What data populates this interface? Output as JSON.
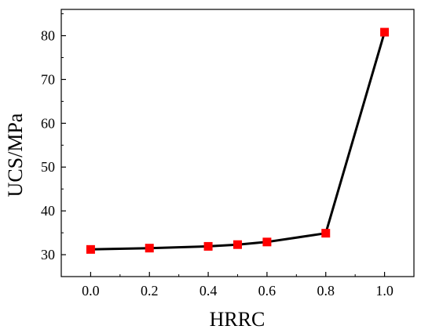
{
  "chart_data": {
    "type": "line",
    "xlabel": "HRRC",
    "ylabel": "UCS/MPa",
    "xlim": [
      -0.1,
      1.1
    ],
    "ylim": [
      25,
      86
    ],
    "x_ticks": [
      0.0,
      0.2,
      0.4,
      0.6,
      0.8,
      1.0
    ],
    "x_tick_labels": [
      "0.0",
      "0.2",
      "0.4",
      "0.6",
      "0.8",
      "1.0"
    ],
    "y_ticks": [
      30,
      40,
      50,
      60,
      70,
      80
    ],
    "y_tick_labels": [
      "30",
      "40",
      "50",
      "60",
      "70",
      "80"
    ],
    "grid": false,
    "line_color": "#000000",
    "marker": "square",
    "marker_color": "#ff0000",
    "series": [
      {
        "x": [
          0.0,
          0.2,
          0.4,
          0.5,
          0.6,
          0.8,
          1.0
        ],
        "y": [
          31.2,
          31.5,
          31.9,
          32.3,
          32.9,
          34.9,
          80.8
        ]
      }
    ]
  }
}
